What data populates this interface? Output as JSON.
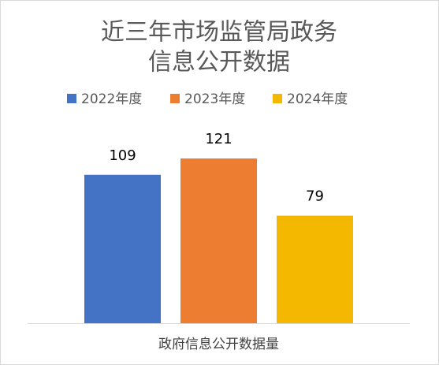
{
  "chart_data": {
    "type": "bar",
    "title": [
      "近三年市场监管局政务",
      "信息公开数据"
    ],
    "categories": [
      "政府信息公开数据量"
    ],
    "series": [
      {
        "name": "2022年度",
        "color": "#4472c4",
        "values": [
          109
        ]
      },
      {
        "name": "2023年度",
        "color": "#ed7d31",
        "values": [
          121
        ]
      },
      {
        "name": "2024年度",
        "color": "#f4b800",
        "values": [
          79
        ]
      }
    ],
    "legend": "top"
  }
}
